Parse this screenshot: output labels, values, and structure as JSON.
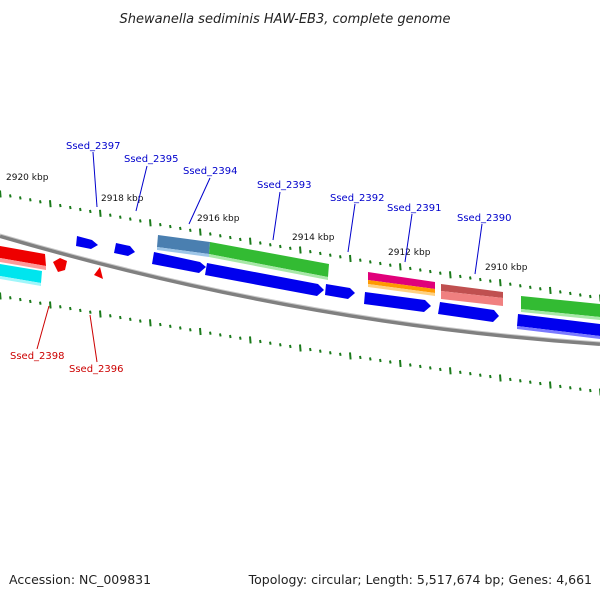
{
  "title": "Shewanella sediminis HAW-EB3, complete genome",
  "footer": {
    "accession": "Accession: NC_009831",
    "topology": "Topology: circular; Length: 5,517,674 bp; Genes: 4,661"
  },
  "colors": {
    "blue_label": "#0000cc",
    "red_label": "#cc0000",
    "gene_blue": "#0000ee",
    "gene_red": "#ee0000",
    "cyan": "#00e5ee",
    "green": "#33bb33",
    "steel_blue": "#4a7fb0",
    "magenta": "#e0007a",
    "orange": "#ff9900",
    "salmon": "#f08080",
    "tick_green": "#1a7a1a",
    "backbone": "#808080"
  },
  "ticks": [
    {
      "label": "2920 kbp"
    },
    {
      "label": "2918 kbp"
    },
    {
      "label": "2916 kbp"
    },
    {
      "label": "2914 kbp"
    },
    {
      "label": "2912 kbp"
    },
    {
      "label": "2910 kbp"
    }
  ],
  "genes_top": [
    {
      "label": "Ssed_2397"
    },
    {
      "label": "Ssed_2395"
    },
    {
      "label": "Ssed_2394"
    },
    {
      "label": "Ssed_2393"
    },
    {
      "label": "Ssed_2392"
    },
    {
      "label": "Ssed_2391"
    },
    {
      "label": "Ssed_2390"
    }
  ],
  "genes_bottom": [
    {
      "label": "Ssed_2398"
    },
    {
      "label": "Ssed_2396"
    }
  ]
}
